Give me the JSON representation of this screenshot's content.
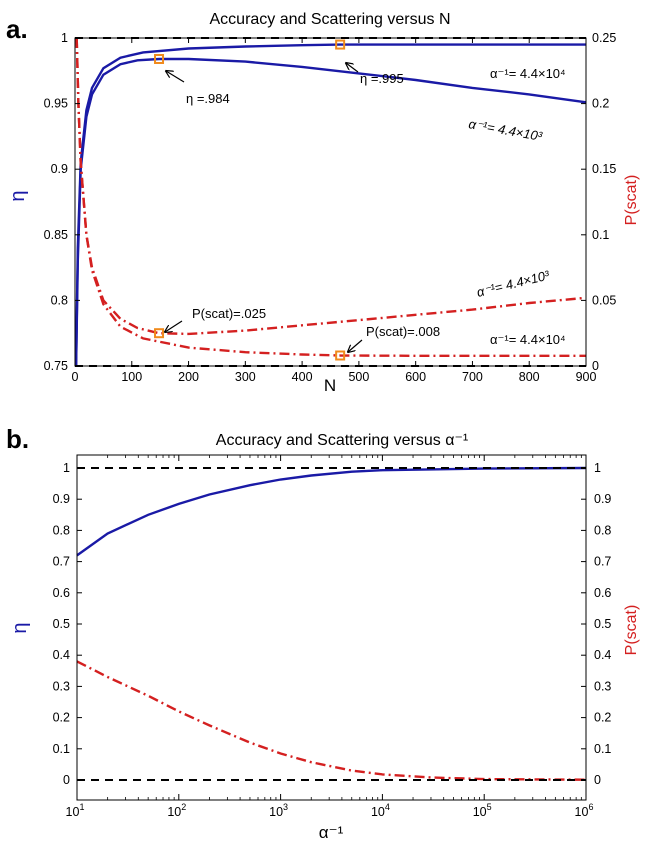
{
  "chart_data": [
    {
      "panel_letter": "a.",
      "type": "line",
      "title": "Accuracy and Scattering versus N",
      "xlabel": "N",
      "ylabel_left": "η",
      "ylabel_right": "P(scat)",
      "xlim": [
        0,
        900
      ],
      "ylim_left": [
        0.75,
        1.0
      ],
      "ylim_right": [
        0,
        0.25
      ],
      "x_ticks": [
        "0",
        "100",
        "200",
        "300",
        "400",
        "500",
        "600",
        "700",
        "800",
        "900"
      ],
      "y_ticks_left": [
        "0.75",
        "0.8",
        "0.85",
        "0.9",
        "0.95",
        "1"
      ],
      "y_ticks_right": [
        "0",
        "0.05",
        "0.1",
        "0.15",
        "0.2",
        "0.25"
      ],
      "colors": {
        "eta": "#1a1aa6",
        "pscat": "#d42020",
        "ref": "#000000",
        "marker": "#f08a1c"
      },
      "series": [
        {
          "axis": "left",
          "color": "#1a1aa6",
          "style": "solid",
          "points": [
            [
              2,
              0.75
            ],
            [
              5,
              0.83
            ],
            [
              10,
              0.9
            ],
            [
              20,
              0.94
            ],
            [
              30,
              0.957
            ],
            [
              50,
              0.972
            ],
            [
              80,
              0.98
            ],
            [
              110,
              0.983
            ],
            [
              148,
              0.984
            ],
            [
              200,
              0.984
            ],
            [
              300,
              0.982
            ],
            [
              400,
              0.978
            ],
            [
              500,
              0.973
            ],
            [
              600,
              0.968
            ],
            [
              700,
              0.962
            ],
            [
              800,
              0.957
            ],
            [
              900,
              0.951
            ]
          ]
        },
        {
          "axis": "left",
          "color": "#1a1aa6",
          "style": "solid",
          "points": [
            [
              2,
              0.75
            ],
            [
              5,
              0.84
            ],
            [
              10,
              0.905
            ],
            [
              20,
              0.945
            ],
            [
              30,
              0.962
            ],
            [
              50,
              0.977
            ],
            [
              80,
              0.985
            ],
            [
              120,
              0.989
            ],
            [
              200,
              0.992
            ],
            [
              300,
              0.9935
            ],
            [
              400,
              0.9945
            ],
            [
              467,
              0.995
            ],
            [
              600,
              0.995
            ],
            [
              700,
              0.995
            ],
            [
              800,
              0.995
            ],
            [
              900,
              0.995
            ]
          ]
        },
        {
          "axis": "right",
          "color": "#d42020",
          "style": "dashdot",
          "points": [
            [
              3,
              0.25
            ],
            [
              6,
              0.2
            ],
            [
              10,
              0.155
            ],
            [
              20,
              0.1
            ],
            [
              30,
              0.075
            ],
            [
              50,
              0.05
            ],
            [
              80,
              0.036
            ],
            [
              110,
              0.029
            ],
            [
              148,
              0.025
            ],
            [
              200,
              0.0245
            ],
            [
              300,
              0.027
            ],
            [
              400,
              0.031
            ],
            [
              500,
              0.035
            ],
            [
              600,
              0.039
            ],
            [
              700,
              0.043
            ],
            [
              800,
              0.048
            ],
            [
              900,
              0.052
            ]
          ]
        },
        {
          "axis": "right",
          "color": "#d42020",
          "style": "dashdot",
          "points": [
            [
              3,
              0.25
            ],
            [
              6,
              0.2
            ],
            [
              10,
              0.155
            ],
            [
              20,
              0.1
            ],
            [
              30,
              0.073
            ],
            [
              50,
              0.047
            ],
            [
              80,
              0.03
            ],
            [
              120,
              0.021
            ],
            [
              200,
              0.014
            ],
            [
              300,
              0.0105
            ],
            [
              400,
              0.0088
            ],
            [
              467,
              0.008
            ],
            [
              600,
              0.0078
            ],
            [
              700,
              0.0078
            ],
            [
              800,
              0.0078
            ],
            [
              900,
              0.0078
            ]
          ]
        },
        {
          "axis": "left",
          "color": "#000000",
          "style": "dashed",
          "points": [
            [
              0,
              1.0
            ],
            [
              900,
              1.0
            ]
          ]
        },
        {
          "axis": "left",
          "color": "#000000",
          "style": "dashed",
          "points": [
            [
              0,
              0.75
            ],
            [
              900,
              0.75
            ]
          ]
        }
      ],
      "markers": [
        {
          "axis": "left",
          "x": 148,
          "y": 0.984
        },
        {
          "axis": "left",
          "x": 467,
          "y": 0.995
        },
        {
          "axis": "right",
          "x": 148,
          "y": 0.025
        },
        {
          "axis": "right",
          "x": 467,
          "y": 0.008
        }
      ],
      "annotations": {
        "eta_984": "η =.984",
        "eta_995": "η =.995",
        "pscat_025": "P(scat)=.025",
        "pscat_008": "P(scat)=.008",
        "alpha_blue_top": "α⁻¹= 4.4×10⁴",
        "alpha_blue_bottom": "α⁻¹= 4.4×10³",
        "alpha_red_top": "α⁻¹= 4.4×10³",
        "alpha_red_bottom": "α⁻¹= 4.4×10⁴"
      }
    },
    {
      "panel_letter": "b.",
      "type": "line",
      "title": "Accuracy and Scattering versus α⁻¹",
      "xlabel": "α⁻¹",
      "ylabel_left": "η",
      "ylabel_right": "P(scat)",
      "x_scale": "log",
      "xlim": [
        10,
        1000000
      ],
      "ylim": [
        0,
        1
      ],
      "x_ticks": [
        {
          "base": "10",
          "exp": "1"
        },
        {
          "base": "10",
          "exp": "2"
        },
        {
          "base": "10",
          "exp": "3"
        },
        {
          "base": "10",
          "exp": "4"
        },
        {
          "base": "10",
          "exp": "5"
        },
        {
          "base": "10",
          "exp": "6"
        }
      ],
      "y_ticks_left": [
        "0",
        "0.1",
        "0.2",
        "0.3",
        "0.4",
        "0.5",
        "0.6",
        "0.7",
        "0.8",
        "0.9",
        "1"
      ],
      "y_ticks_right": [
        "0",
        "0.1",
        "0.2",
        "0.3",
        "0.4",
        "0.5",
        "0.6",
        "0.7",
        "0.8",
        "0.9",
        "1"
      ],
      "series": [
        {
          "axis": "left",
          "color": "#1a1aa6",
          "style": "solid",
          "points": [
            [
              10,
              0.72
            ],
            [
              20,
              0.79
            ],
            [
              50,
              0.85
            ],
            [
              100,
              0.885
            ],
            [
              200,
              0.915
            ],
            [
              500,
              0.945
            ],
            [
              1000,
              0.963
            ],
            [
              2000,
              0.976
            ],
            [
              5000,
              0.988
            ],
            [
              10000,
              0.993
            ],
            [
              100000,
              0.998
            ],
            [
              1000000,
              1.0
            ]
          ]
        },
        {
          "axis": "right",
          "color": "#d42020",
          "style": "dashdot",
          "points": [
            [
              10,
              0.38
            ],
            [
              20,
              0.33
            ],
            [
              50,
              0.27
            ],
            [
              100,
              0.22
            ],
            [
              200,
              0.175
            ],
            [
              500,
              0.12
            ],
            [
              1000,
              0.085
            ],
            [
              2000,
              0.057
            ],
            [
              5000,
              0.03
            ],
            [
              10000,
              0.018
            ],
            [
              30000,
              0.008
            ],
            [
              100000,
              0.003
            ],
            [
              1000000,
              0.001
            ]
          ]
        },
        {
          "axis": "left",
          "color": "#000000",
          "style": "dashed",
          "points": [
            [
              10,
              1.0
            ],
            [
              1000000,
              1.0
            ]
          ]
        },
        {
          "axis": "left",
          "color": "#000000",
          "style": "dashed",
          "points": [
            [
              10,
              0.0
            ],
            [
              1000000,
              0.0
            ]
          ]
        }
      ]
    }
  ]
}
